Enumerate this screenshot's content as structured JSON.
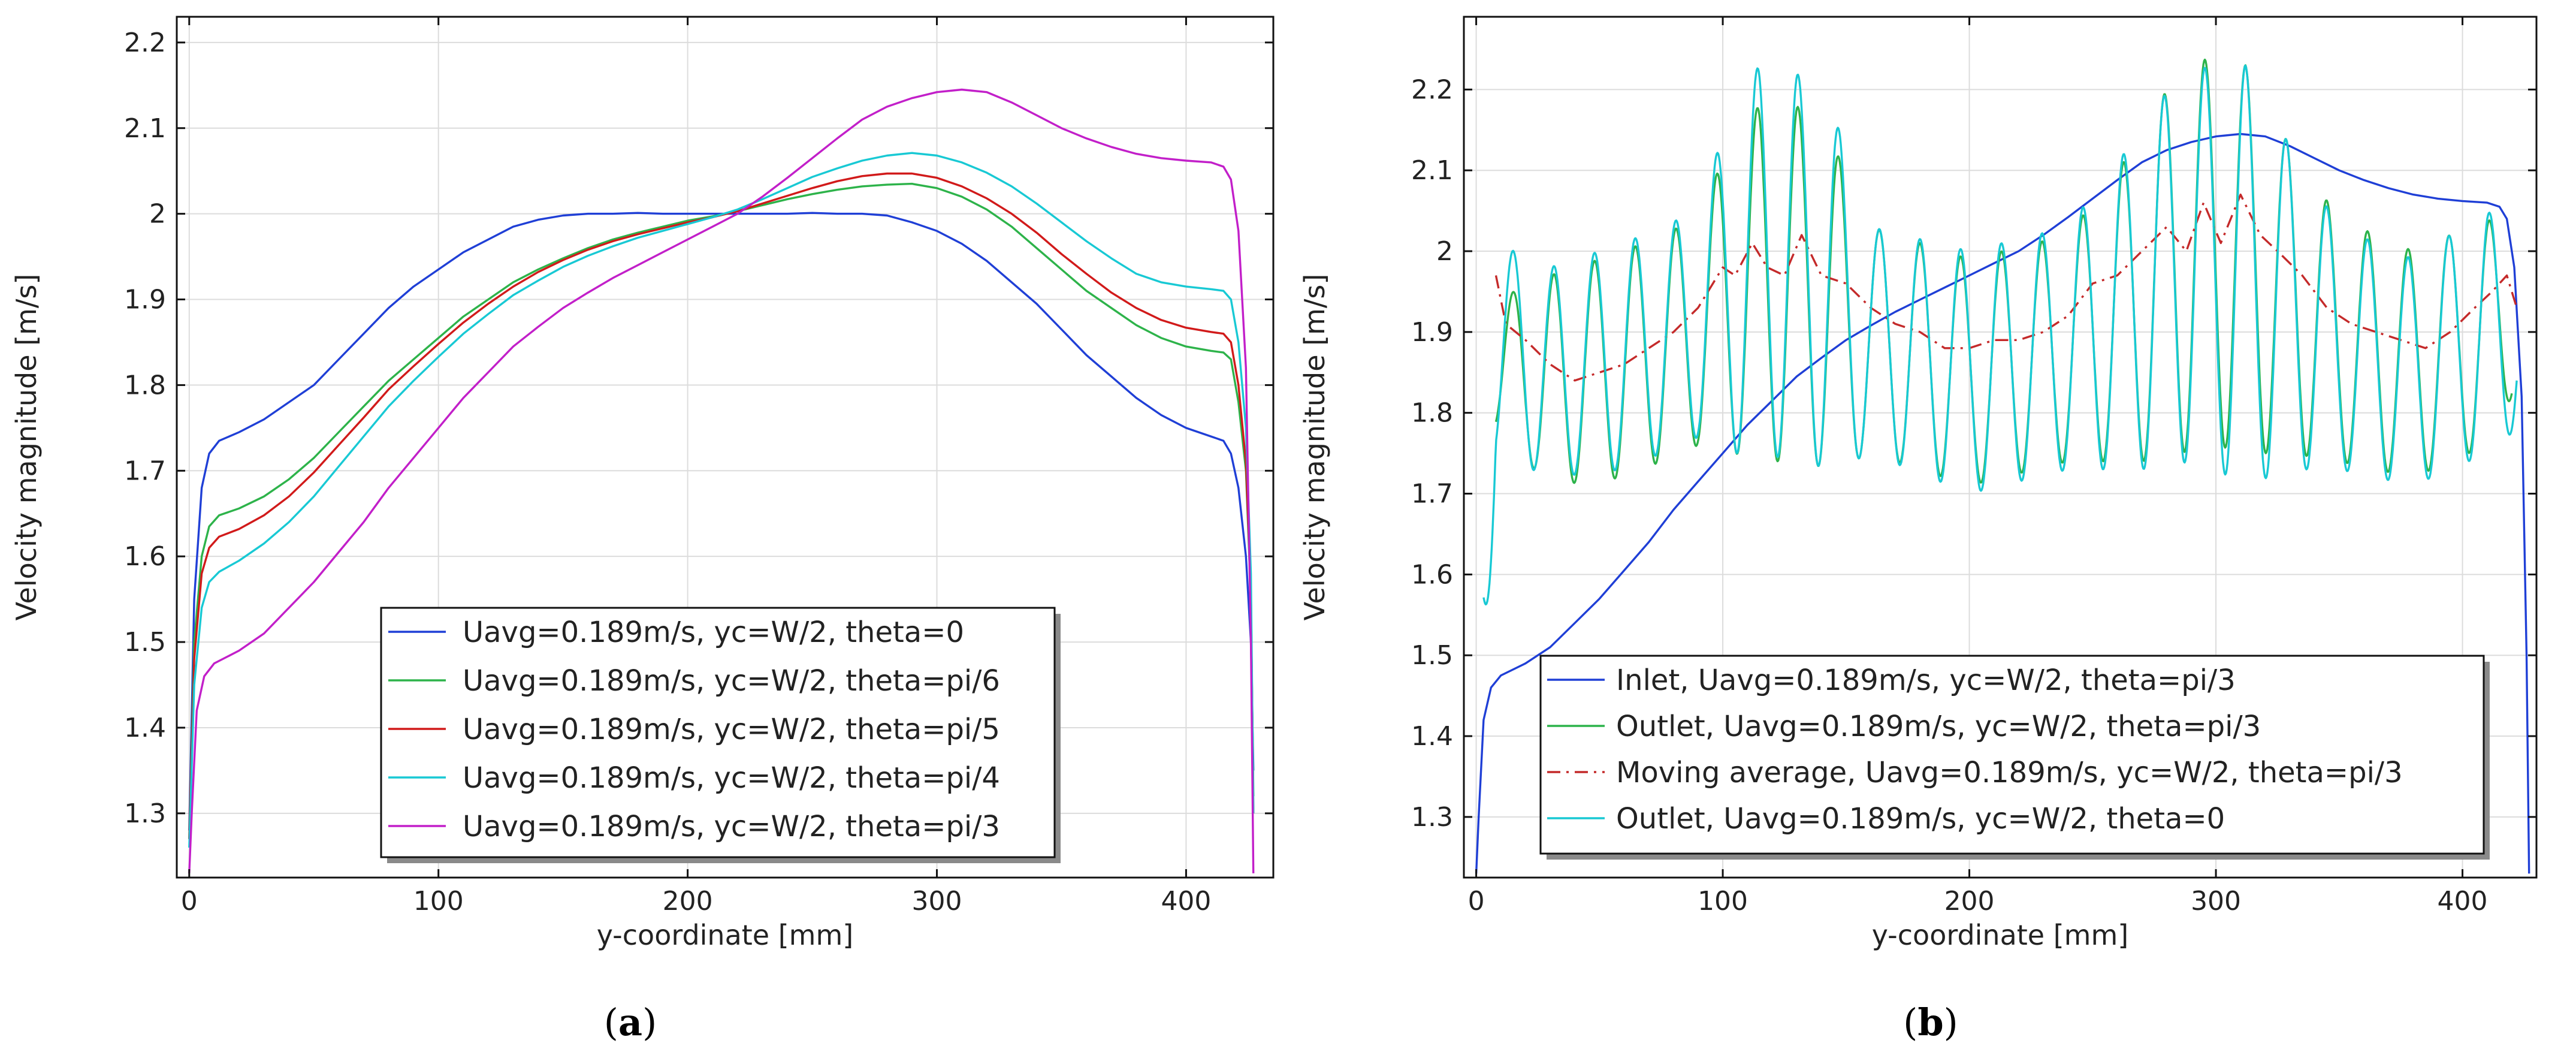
{
  "figure": {
    "panels": [
      {
        "label_open": "(",
        "label_letter": "a",
        "label_close": ")"
      },
      {
        "label_open": "(",
        "label_letter": "b",
        "label_close": ")"
      }
    ]
  },
  "chart_data": [
    {
      "type": "line",
      "xlabel": "y-coordinate [mm]",
      "ylabel": "Velocity magnitude [m/s]",
      "xlim": [
        -5,
        435
      ],
      "ylim": [
        1.225,
        2.23
      ],
      "xticks": [
        0,
        100,
        200,
        300,
        400
      ],
      "yticks": [
        1.3,
        1.4,
        1.5,
        1.6,
        1.7,
        1.8,
        1.9,
        2.0,
        2.1,
        2.2
      ],
      "ytick_labels": [
        "1.3",
        "1.4",
        "1.5",
        "1.6",
        "1.7",
        "1.8",
        "1.9",
        "2",
        "2.1",
        "2.2"
      ],
      "grid": true,
      "legend_position": "bottom-center",
      "series": [
        {
          "name": "Uavg=0.189m/s, yc=W/2, theta=0",
          "color": "#1f3fd6",
          "style": "solid",
          "x": [
            0,
            2,
            5,
            8,
            12,
            20,
            30,
            40,
            50,
            60,
            70,
            80,
            90,
            100,
            110,
            120,
            130,
            140,
            150,
            160,
            170,
            180,
            190,
            200,
            210,
            220,
            230,
            240,
            250,
            260,
            270,
            280,
            290,
            300,
            310,
            320,
            330,
            340,
            350,
            360,
            370,
            380,
            390,
            400,
            410,
            415,
            418,
            421,
            424,
            426,
            427
          ],
          "y": [
            1.28,
            1.55,
            1.68,
            1.72,
            1.735,
            1.745,
            1.76,
            1.78,
            1.8,
            1.83,
            1.86,
            1.89,
            1.915,
            1.935,
            1.955,
            1.97,
            1.985,
            1.993,
            1.998,
            2.0,
            2.0,
            2.001,
            2.0,
            2.0,
            2.0,
            2.0,
            2.0,
            2.0,
            2.001,
            2.0,
            2.0,
            1.998,
            1.99,
            1.98,
            1.965,
            1.945,
            1.92,
            1.895,
            1.865,
            1.835,
            1.81,
            1.785,
            1.765,
            1.75,
            1.74,
            1.735,
            1.72,
            1.68,
            1.6,
            1.5,
            1.35
          ]
        },
        {
          "name": "Uavg=0.189m/s, yc=W/2, theta=pi/6",
          "color": "#2db34a",
          "style": "solid",
          "x": [
            0,
            2,
            5,
            8,
            12,
            20,
            30,
            40,
            50,
            60,
            70,
            80,
            90,
            100,
            110,
            120,
            130,
            140,
            150,
            160,
            170,
            180,
            190,
            200,
            210,
            220,
            230,
            240,
            250,
            260,
            270,
            280,
            290,
            300,
            310,
            320,
            330,
            340,
            350,
            360,
            370,
            380,
            390,
            400,
            410,
            415,
            418,
            421,
            424,
            426,
            427
          ],
          "y": [
            1.27,
            1.5,
            1.6,
            1.635,
            1.648,
            1.656,
            1.67,
            1.69,
            1.715,
            1.745,
            1.775,
            1.805,
            1.83,
            1.855,
            1.88,
            1.9,
            1.92,
            1.935,
            1.948,
            1.96,
            1.97,
            1.978,
            1.985,
            1.992,
            1.997,
            2.003,
            2.01,
            2.017,
            2.023,
            2.028,
            2.032,
            2.034,
            2.035,
            2.03,
            2.02,
            2.005,
            1.985,
            1.96,
            1.935,
            1.91,
            1.89,
            1.87,
            1.855,
            1.845,
            1.84,
            1.838,
            1.83,
            1.78,
            1.7,
            1.55,
            1.32
          ]
        },
        {
          "name": "Uavg=0.189m/s, yc=W/2, theta=pi/5",
          "color": "#d11a1a",
          "style": "solid",
          "x": [
            0,
            2,
            5,
            8,
            12,
            20,
            30,
            40,
            50,
            60,
            70,
            80,
            90,
            100,
            110,
            120,
            130,
            140,
            150,
            160,
            170,
            180,
            190,
            200,
            210,
            220,
            230,
            240,
            250,
            260,
            270,
            280,
            290,
            300,
            310,
            320,
            330,
            340,
            350,
            360,
            370,
            380,
            390,
            400,
            410,
            415,
            418,
            421,
            424,
            426,
            427
          ],
          "y": [
            1.27,
            1.48,
            1.58,
            1.61,
            1.623,
            1.632,
            1.648,
            1.67,
            1.698,
            1.73,
            1.762,
            1.795,
            1.822,
            1.848,
            1.873,
            1.895,
            1.915,
            1.932,
            1.946,
            1.958,
            1.968,
            1.976,
            1.983,
            1.99,
            1.996,
            2.003,
            2.012,
            2.021,
            2.03,
            2.038,
            2.044,
            2.047,
            2.047,
            2.042,
            2.032,
            2.018,
            2.0,
            1.978,
            1.953,
            1.93,
            1.908,
            1.89,
            1.876,
            1.867,
            1.862,
            1.86,
            1.85,
            1.8,
            1.71,
            1.56,
            1.3
          ]
        },
        {
          "name": "Uavg=0.189m/s, yc=W/2, theta=pi/4",
          "color": "#18c9d4",
          "style": "solid",
          "x": [
            0,
            2,
            5,
            8,
            12,
            20,
            30,
            40,
            50,
            60,
            70,
            80,
            90,
            100,
            110,
            120,
            130,
            140,
            150,
            160,
            170,
            180,
            190,
            200,
            210,
            220,
            230,
            240,
            250,
            260,
            270,
            280,
            290,
            300,
            310,
            320,
            330,
            340,
            350,
            360,
            370,
            380,
            390,
            400,
            410,
            415,
            418,
            421,
            424,
            426,
            427
          ],
          "y": [
            1.26,
            1.45,
            1.54,
            1.57,
            1.582,
            1.595,
            1.615,
            1.64,
            1.67,
            1.705,
            1.74,
            1.775,
            1.805,
            1.833,
            1.86,
            1.883,
            1.905,
            1.922,
            1.938,
            1.951,
            1.962,
            1.972,
            1.98,
            1.988,
            1.996,
            2.005,
            2.017,
            2.03,
            2.043,
            2.053,
            2.062,
            2.068,
            2.071,
            2.068,
            2.06,
            2.048,
            2.032,
            2.012,
            1.99,
            1.968,
            1.948,
            1.93,
            1.92,
            1.915,
            1.912,
            1.91,
            1.9,
            1.85,
            1.75,
            1.58,
            1.3
          ]
        },
        {
          "name": "Uavg=0.189m/s, yc=W/2, theta=pi/3",
          "color": "#c21fc9",
          "style": "solid",
          "x": [
            0,
            1,
            3,
            6,
            10,
            20,
            30,
            40,
            50,
            60,
            70,
            80,
            90,
            100,
            110,
            120,
            130,
            140,
            150,
            160,
            170,
            180,
            190,
            200,
            210,
            220,
            230,
            240,
            250,
            260,
            270,
            280,
            290,
            300,
            310,
            320,
            330,
            340,
            350,
            360,
            370,
            380,
            390,
            400,
            410,
            415,
            418,
            421,
            424,
            426,
            427
          ],
          "y": [
            1.23,
            1.3,
            1.42,
            1.46,
            1.475,
            1.49,
            1.51,
            1.54,
            1.57,
            1.605,
            1.64,
            1.68,
            1.715,
            1.75,
            1.785,
            1.815,
            1.845,
            1.868,
            1.89,
            1.908,
            1.925,
            1.94,
            1.955,
            1.97,
            1.985,
            2.0,
            2.02,
            2.042,
            2.065,
            2.088,
            2.11,
            2.125,
            2.135,
            2.142,
            2.145,
            2.142,
            2.13,
            2.115,
            2.1,
            2.088,
            2.078,
            2.07,
            2.065,
            2.062,
            2.06,
            2.055,
            2.04,
            1.98,
            1.82,
            1.5,
            1.23
          ]
        }
      ]
    },
    {
      "type": "line",
      "xlabel": "y-coordinate [mm]",
      "ylabel": "Velocity magnitude [m/s]",
      "xlim": [
        -5,
        430
      ],
      "ylim": [
        1.225,
        2.29
      ],
      "xticks": [
        0,
        100,
        200,
        300,
        400
      ],
      "yticks": [
        1.3,
        1.4,
        1.5,
        1.6,
        1.7,
        1.8,
        1.9,
        2.0,
        2.1,
        2.2
      ],
      "ytick_labels": [
        "1.3",
        "1.4",
        "1.5",
        "1.6",
        "1.7",
        "1.8",
        "1.9",
        "2",
        "2.1",
        "2.2"
      ],
      "grid": true,
      "legend_position": "bottom-center",
      "series": [
        {
          "name": "Inlet, Uavg=0.189m/s, yc=W/2, theta=pi/3",
          "color": "#1f3fd6",
          "style": "solid",
          "x": [
            0,
            1,
            3,
            6,
            10,
            20,
            30,
            40,
            50,
            60,
            70,
            80,
            90,
            100,
            110,
            120,
            130,
            140,
            150,
            160,
            170,
            180,
            190,
            200,
            210,
            220,
            230,
            240,
            250,
            260,
            270,
            280,
            290,
            300,
            310,
            320,
            330,
            340,
            350,
            360,
            370,
            380,
            390,
            400,
            410,
            415,
            418,
            421,
            424,
            426,
            427
          ],
          "y": [
            1.23,
            1.3,
            1.42,
            1.46,
            1.475,
            1.49,
            1.51,
            1.54,
            1.57,
            1.605,
            1.64,
            1.68,
            1.715,
            1.75,
            1.785,
            1.815,
            1.845,
            1.868,
            1.89,
            1.908,
            1.925,
            1.94,
            1.955,
            1.97,
            1.985,
            2.0,
            2.02,
            2.042,
            2.065,
            2.088,
            2.11,
            2.125,
            2.135,
            2.142,
            2.145,
            2.142,
            2.13,
            2.115,
            2.1,
            2.088,
            2.078,
            2.07,
            2.065,
            2.062,
            2.06,
            2.055,
            2.04,
            1.98,
            1.82,
            1.5,
            1.23
          ]
        },
        {
          "name": "Outlet, Uavg=0.189m/s, yc=W/2, theta=pi/3",
          "color": "#2db34a",
          "style": "oscillating",
          "x_start": 8,
          "x_end": 420,
          "period": 16.5,
          "phase_x": 15,
          "envelope_x": [
            8,
            30,
            60,
            90,
            105,
            115,
            130,
            145,
            160,
            200,
            240,
            270,
            285,
            300,
            312,
            330,
            350,
            380,
            410,
            420
          ],
          "envelope_mean": [
            1.86,
            1.84,
            1.86,
            1.9,
            1.95,
            1.96,
            1.96,
            1.93,
            1.89,
            1.85,
            1.88,
            1.94,
            1.99,
            2.0,
            1.99,
            1.94,
            1.89,
            1.86,
            1.9,
            1.92
          ],
          "envelope_amp": [
            0.08,
            0.13,
            0.14,
            0.14,
            0.2,
            0.22,
            0.22,
            0.2,
            0.14,
            0.14,
            0.14,
            0.2,
            0.24,
            0.24,
            0.24,
            0.19,
            0.15,
            0.14,
            0.14,
            0.1
          ]
        },
        {
          "name": "Moving average, Uavg=0.189m/s, yc=W/2, theta=pi/3",
          "color": "#c42a2a",
          "style": "dashdot",
          "x": [
            8,
            12,
            20,
            30,
            40,
            50,
            60,
            70,
            80,
            90,
            100,
            105,
            112,
            118,
            125,
            132,
            140,
            150,
            160,
            170,
            180,
            190,
            200,
            210,
            220,
            230,
            240,
            250,
            260,
            270,
            280,
            288,
            295,
            302,
            310,
            318,
            325,
            335,
            345,
            355,
            365,
            375,
            385,
            395,
            405,
            412,
            418,
            422
          ],
          "y": [
            1.97,
            1.91,
            1.89,
            1.86,
            1.84,
            1.85,
            1.86,
            1.88,
            1.9,
            1.93,
            1.98,
            1.97,
            2.01,
            1.98,
            1.97,
            2.02,
            1.97,
            1.96,
            1.93,
            1.91,
            1.9,
            1.88,
            1.88,
            1.89,
            1.89,
            1.9,
            1.92,
            1.96,
            1.97,
            2.0,
            2.03,
            2.0,
            2.06,
            2.01,
            2.07,
            2.02,
            2.0,
            1.97,
            1.93,
            1.91,
            1.9,
            1.89,
            1.88,
            1.9,
            1.93,
            1.95,
            1.97,
            1.93
          ]
        },
        {
          "name": "Outlet, Uavg=0.189m/s, yc=W/2, theta=0",
          "color": "#18c9d4",
          "style": "oscillating",
          "x_start": 3,
          "x_end": 422,
          "period": 16.5,
          "phase_x": 15,
          "envelope_x": [
            3,
            8,
            30,
            60,
            90,
            105,
            115,
            130,
            145,
            160,
            200,
            240,
            270,
            285,
            300,
            312,
            330,
            350,
            380,
            410,
            422
          ],
          "envelope_mean": [
            1.6,
            1.88,
            1.85,
            1.87,
            1.91,
            1.97,
            1.99,
            1.98,
            1.95,
            1.89,
            1.85,
            1.88,
            1.94,
            1.98,
            1.98,
            1.97,
            1.93,
            1.88,
            1.85,
            1.9,
            1.9
          ],
          "envelope_amp": [
            0.2,
            0.13,
            0.13,
            0.14,
            0.14,
            0.22,
            0.24,
            0.24,
            0.22,
            0.14,
            0.15,
            0.15,
            0.21,
            0.24,
            0.25,
            0.26,
            0.2,
            0.15,
            0.14,
            0.15,
            0.12
          ]
        }
      ]
    }
  ]
}
